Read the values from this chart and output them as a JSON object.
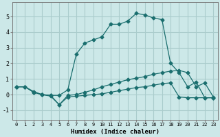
{
  "bg_color": "#cce8e8",
  "grid_color": "#aacccc",
  "line_color": "#1a6e6e",
  "xlabel": "Humidex (Indice chaleur)",
  "xlim": [
    -0.5,
    23.5
  ],
  "ylim": [
    -1.6,
    5.9
  ],
  "xticks": [
    0,
    1,
    2,
    3,
    4,
    5,
    6,
    7,
    8,
    9,
    10,
    11,
    12,
    13,
    14,
    15,
    16,
    17,
    18,
    19,
    20,
    21,
    22,
    23
  ],
  "yticks": [
    -1,
    0,
    1,
    2,
    3,
    4,
    5
  ],
  "line1_x": [
    0,
    1,
    2,
    3,
    4,
    5,
    6,
    7,
    8,
    9,
    10,
    11,
    12,
    13,
    14,
    15,
    16,
    17,
    18,
    19,
    20,
    21,
    22,
    23
  ],
  "line1_y": [
    0.5,
    0.5,
    0.2,
    0.0,
    -0.05,
    -0.05,
    0.3,
    2.6,
    3.3,
    3.5,
    3.7,
    4.5,
    4.5,
    4.7,
    5.2,
    5.1,
    4.9,
    4.8,
    2.0,
    1.4,
    0.5,
    0.8,
    -0.2,
    -0.2
  ],
  "line2_x": [
    0,
    1,
    2,
    3,
    4,
    5,
    6,
    7,
    8,
    9,
    10,
    11,
    12,
    13,
    14,
    15,
    16,
    17,
    18,
    19,
    20,
    21,
    22,
    23
  ],
  "line2_y": [
    0.5,
    0.5,
    0.15,
    0.0,
    -0.05,
    -0.65,
    -0.05,
    0.0,
    0.15,
    0.3,
    0.5,
    0.65,
    0.8,
    0.95,
    1.05,
    1.15,
    1.3,
    1.4,
    1.5,
    1.55,
    1.4,
    0.5,
    0.75,
    -0.15
  ],
  "line3_x": [
    0,
    1,
    2,
    3,
    4,
    5,
    6,
    7,
    8,
    9,
    10,
    11,
    12,
    13,
    14,
    15,
    16,
    17,
    18,
    19,
    20,
    21,
    22,
    23
  ],
  "line3_y": [
    0.5,
    0.5,
    0.15,
    0.0,
    -0.1,
    -0.65,
    -0.15,
    -0.1,
    -0.05,
    0.0,
    0.05,
    0.15,
    0.25,
    0.35,
    0.45,
    0.5,
    0.6,
    0.7,
    0.75,
    -0.15,
    -0.2,
    -0.2,
    -0.2,
    -0.2
  ]
}
